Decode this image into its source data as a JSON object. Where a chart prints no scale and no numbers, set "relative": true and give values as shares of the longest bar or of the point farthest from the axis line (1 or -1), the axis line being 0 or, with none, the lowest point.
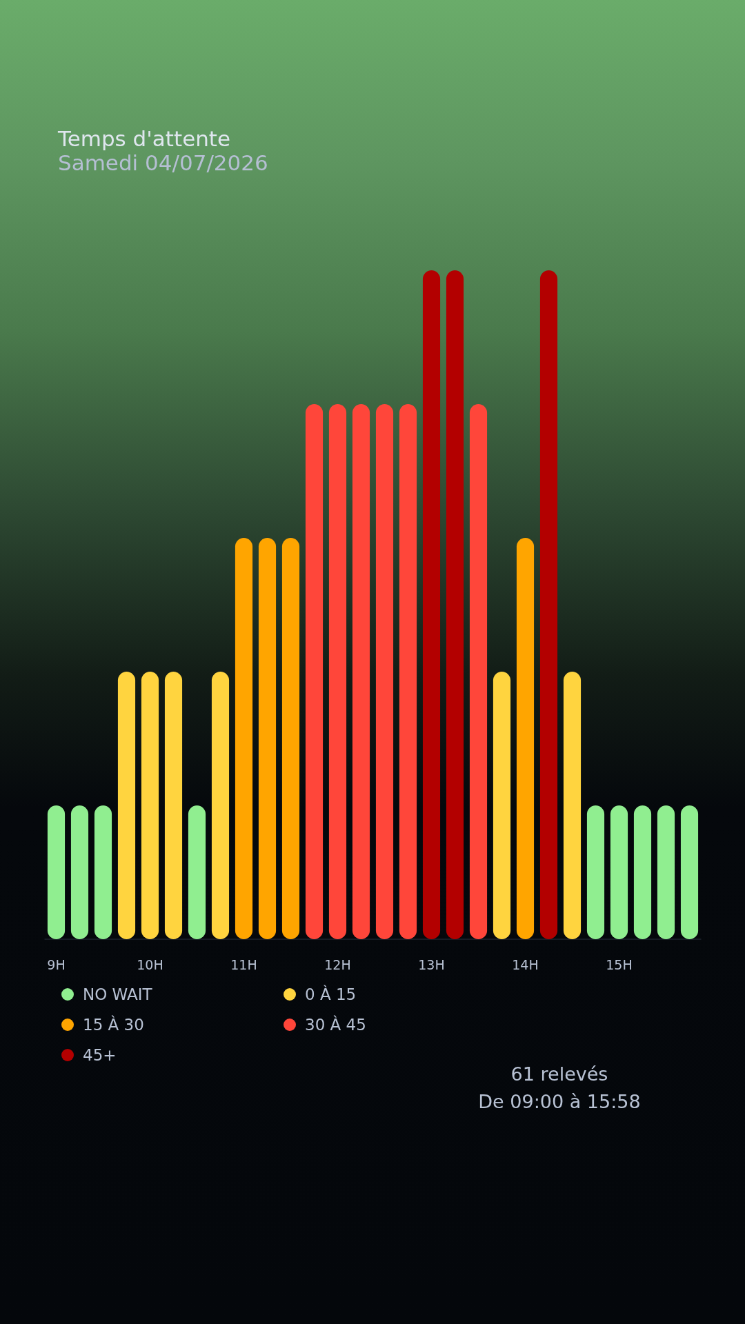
{
  "chart_data": {
    "type": "bar",
    "title": "Temps d'attente",
    "subtitle": "Samedi 04/07/2026",
    "categories": [
      "9H",
      null,
      null,
      null,
      "10H",
      null,
      null,
      null,
      "11H",
      null,
      null,
      null,
      "12H",
      null,
      null,
      null,
      "13H",
      null,
      null,
      null,
      "14H",
      null,
      null,
      null,
      "15H",
      null,
      null,
      null
    ],
    "relative": true,
    "stacked": true,
    "series": [
      {
        "name": "NO WAIT",
        "color": "#90ee90",
        "values": [
          0.2,
          0.2,
          0.2,
          null,
          null,
          null,
          0.2,
          null,
          null,
          null,
          null,
          null,
          null,
          null,
          null,
          null,
          null,
          null,
          null,
          null,
          null,
          null,
          null,
          0.2,
          0.2,
          0.2,
          0.2,
          0.2
        ]
      },
      {
        "name": "0 À 15",
        "color": "#ffd43f",
        "values": [
          null,
          null,
          null,
          0.4,
          0.4,
          0.4,
          null,
          0.4,
          null,
          null,
          null,
          null,
          null,
          null,
          null,
          null,
          null,
          null,
          null,
          0.4,
          null,
          null,
          0.4,
          null,
          null,
          null,
          null,
          null
        ]
      },
      {
        "name": "15 À 30",
        "color": "#ffa500",
        "values": [
          null,
          null,
          null,
          null,
          null,
          null,
          null,
          null,
          0.6,
          0.6,
          0.6,
          null,
          null,
          null,
          null,
          null,
          null,
          null,
          null,
          null,
          0.6,
          null,
          null,
          null,
          null,
          null,
          null,
          null
        ]
      },
      {
        "name": "30 À 45",
        "color": "#ff463a",
        "values": [
          null,
          null,
          null,
          null,
          null,
          null,
          null,
          null,
          null,
          null,
          null,
          0.8,
          0.8,
          0.8,
          0.8,
          0.8,
          null,
          null,
          0.8,
          null,
          null,
          null,
          null,
          null,
          null,
          null,
          null,
          null
        ]
      },
      {
        "name": "45+",
        "color": "#b30000",
        "values": [
          null,
          null,
          null,
          null,
          null,
          null,
          null,
          null,
          null,
          null,
          null,
          null,
          null,
          null,
          null,
          null,
          1,
          1,
          null,
          null,
          null,
          1,
          null,
          null,
          null,
          null,
          null,
          null
        ]
      }
    ],
    "legend": "bottom left",
    "annotations": [
      "61 relevés",
      "De 09:00 à 15:58"
    ]
  }
}
